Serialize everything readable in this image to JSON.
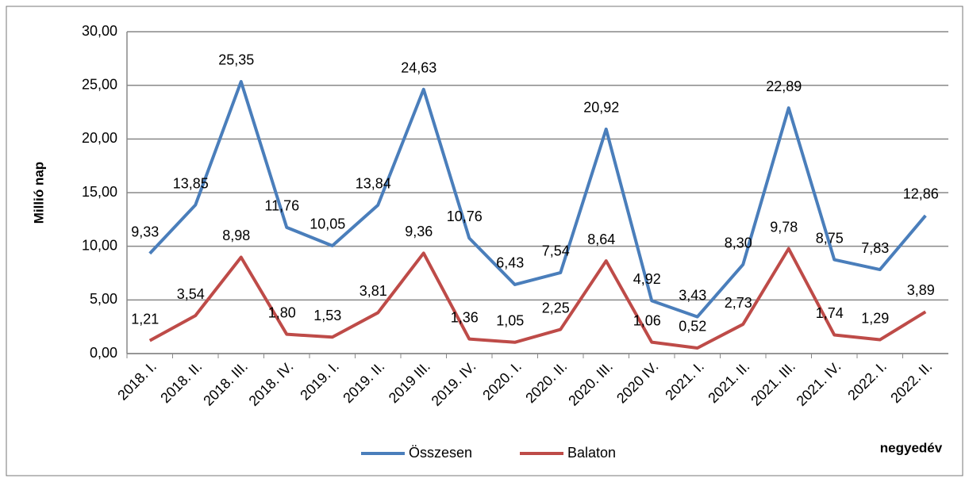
{
  "chart_data": {
    "type": "line",
    "categories": [
      "2018. I.",
      "2018. II.",
      "2018. III.",
      "2018. IV.",
      "2019. I.",
      "2019. II.",
      "2019 III.",
      "2019. IV.",
      "2020. I.",
      "2020. II.",
      "2020. III.",
      "2020 IV.",
      "2021. I.",
      "2021. II.",
      "2021. III.",
      "2021. IV.",
      "2022. I.",
      "2022. II."
    ],
    "series": [
      {
        "name": "Összesen",
        "color": "#4a7ebb",
        "values": [
          9.33,
          13.85,
          25.35,
          11.76,
          10.05,
          13.84,
          24.63,
          10.76,
          6.43,
          7.54,
          20.92,
          4.92,
          3.43,
          8.3,
          22.89,
          8.75,
          7.83,
          12.86
        ],
        "value_labels": [
          "9,33",
          "13,85",
          "25,35",
          "11,76",
          "10,05",
          "13,84",
          "24,63",
          "10,76",
          "6,43",
          "7,54",
          "20,92",
          "4,92",
          "3,43",
          "8,30",
          "22,89",
          "8,75",
          "7,83",
          "12,86"
        ]
      },
      {
        "name": "Balaton",
        "color": "#be4b48",
        "values": [
          1.21,
          3.54,
          8.98,
          1.8,
          1.53,
          3.81,
          9.36,
          1.36,
          1.05,
          2.25,
          8.64,
          1.06,
          0.52,
          2.73,
          9.78,
          1.74,
          1.29,
          3.89
        ],
        "value_labels": [
          "1,21",
          "3,54",
          "8,98",
          "1,80",
          "1,53",
          "3,81",
          "9,36",
          "1,36",
          "1,05",
          "2,25",
          "8,64",
          "1,06",
          "0,52",
          "2,73",
          "9,78",
          "1,74",
          "1,29",
          "3,89"
        ]
      }
    ],
    "ylabel": "Millió nap",
    "xlabel": "negyedév",
    "ylim": [
      0,
      30
    ],
    "yticks": [
      {
        "value": 0,
        "label": "0,00"
      },
      {
        "value": 5,
        "label": "5,00"
      },
      {
        "value": 10,
        "label": "10,00"
      },
      {
        "value": 15,
        "label": "15,00"
      },
      {
        "value": 20,
        "label": "20,00"
      },
      {
        "value": 25,
        "label": "25,00"
      },
      {
        "value": 30,
        "label": "30,00"
      }
    ],
    "grid": true,
    "legend": "bottom"
  }
}
